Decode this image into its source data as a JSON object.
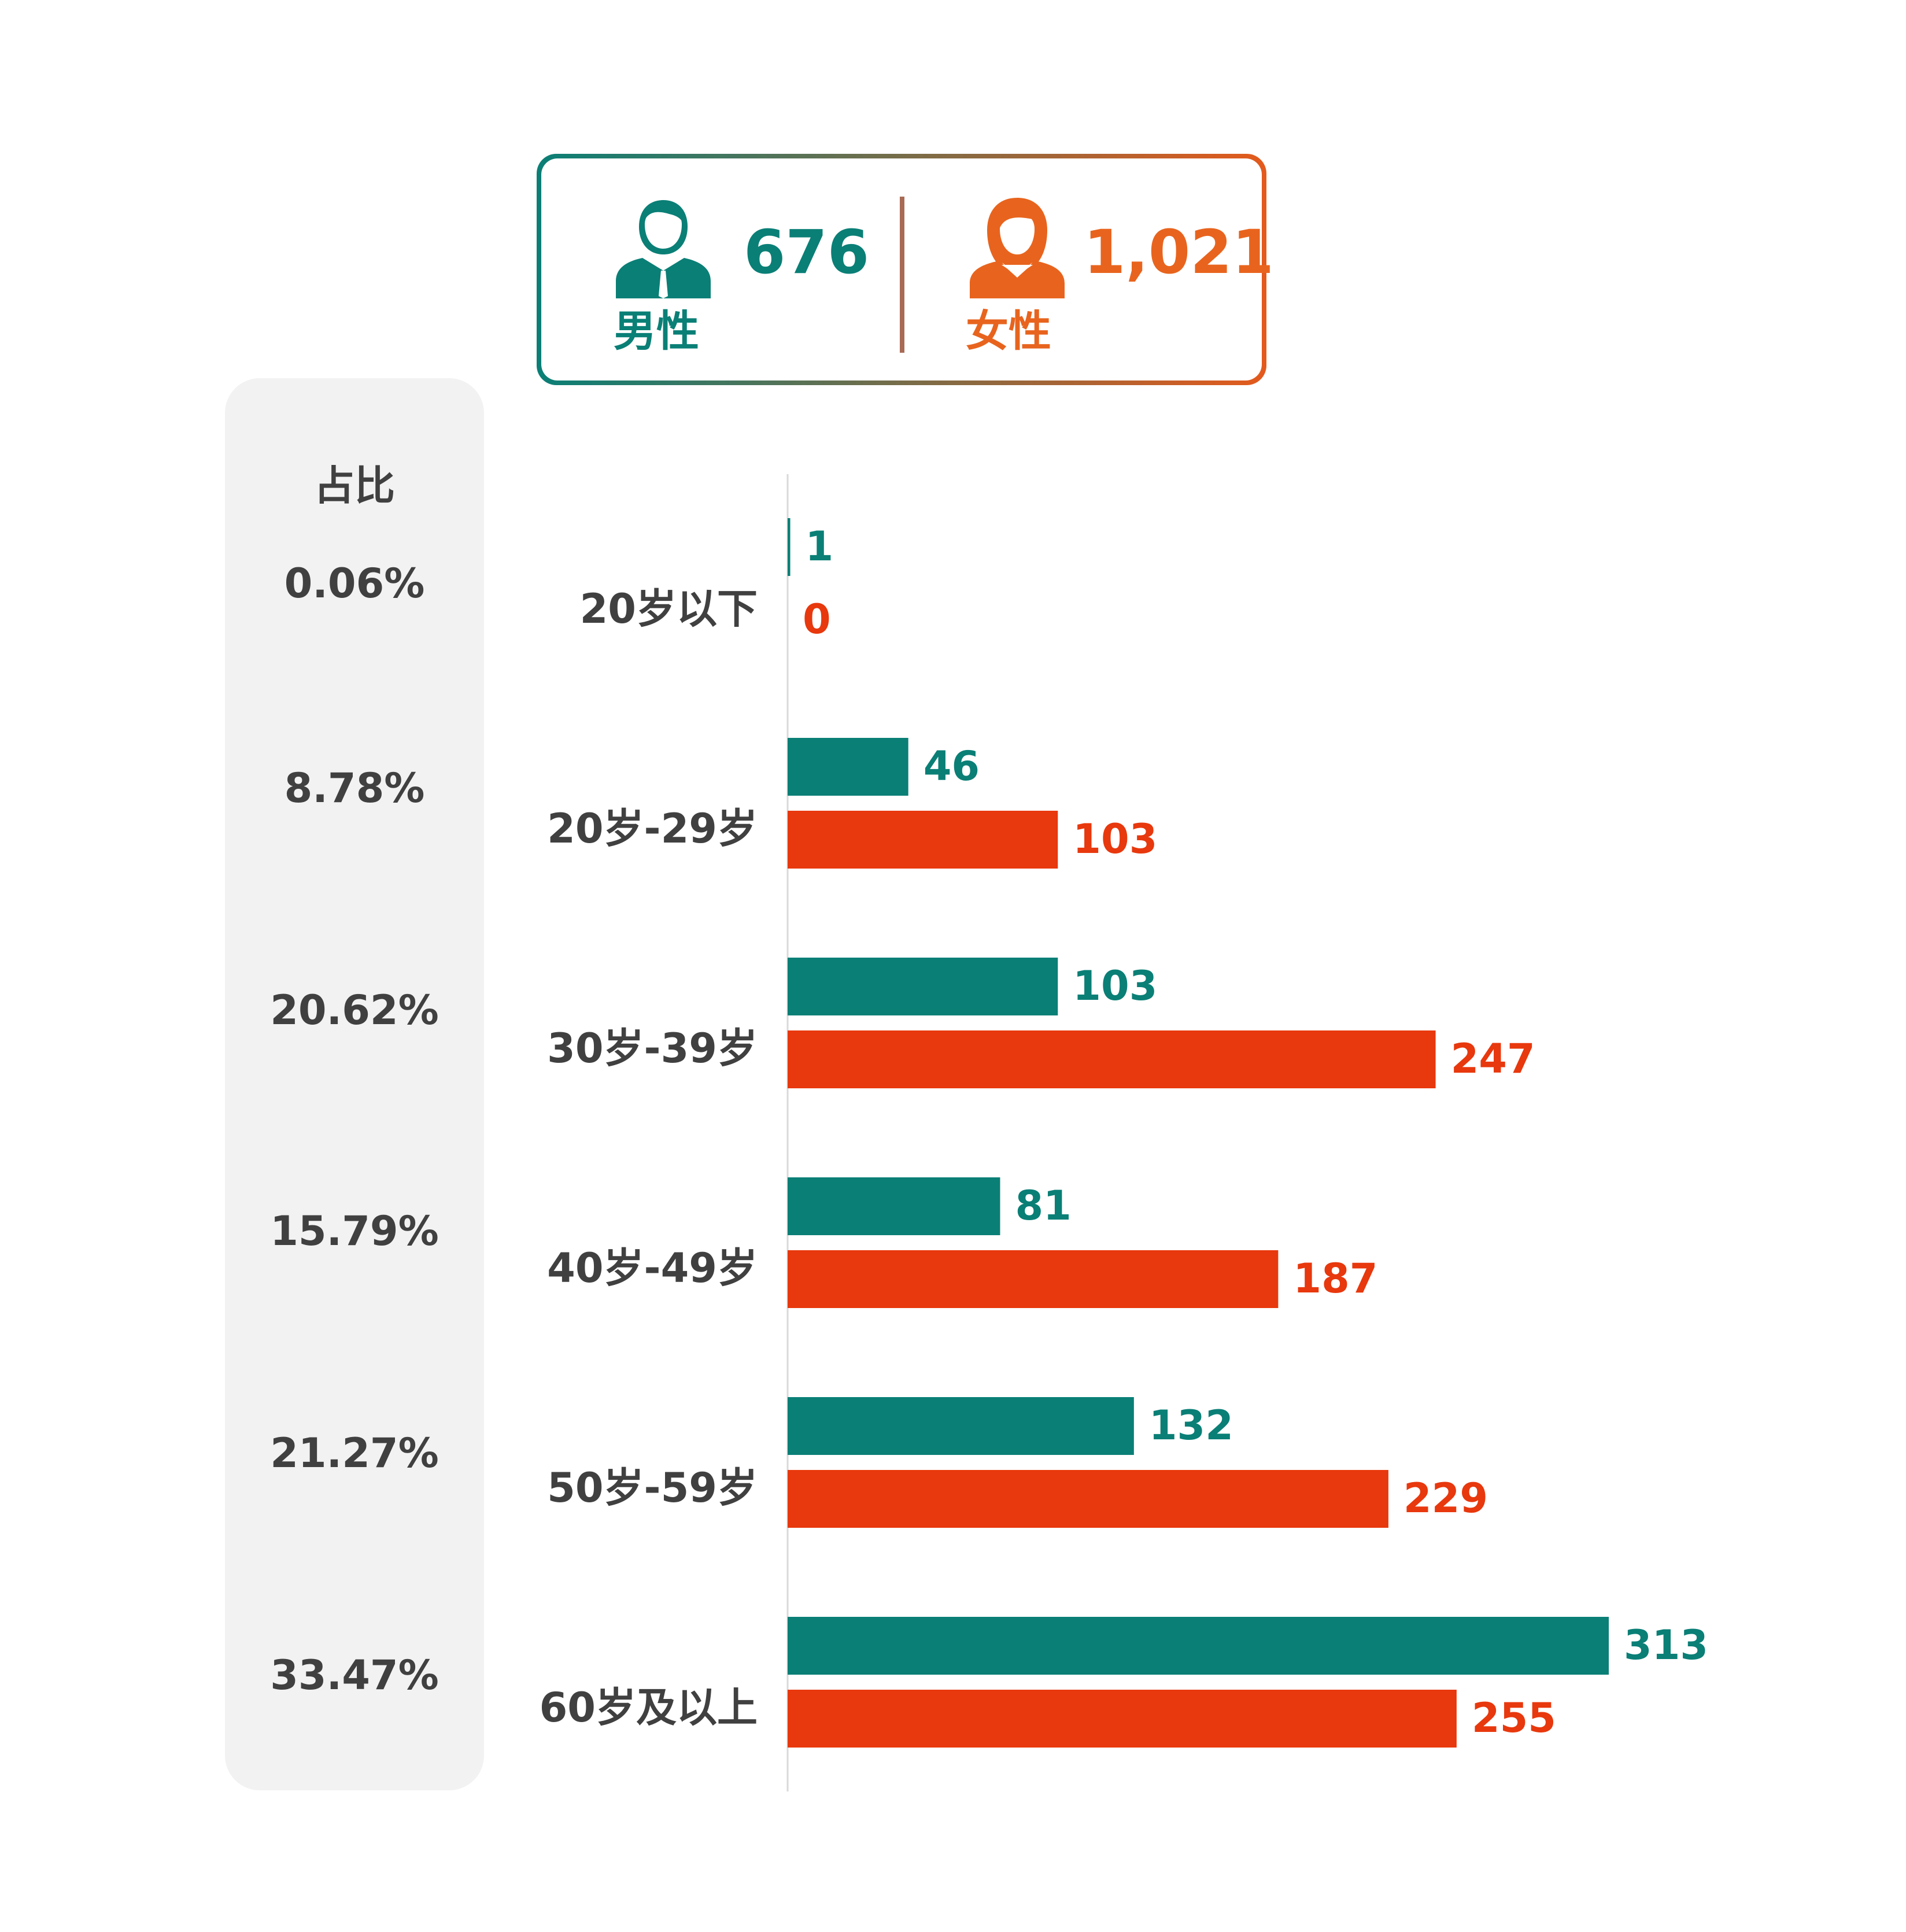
{
  "summary": {
    "male": {
      "label": "男性",
      "count": "676",
      "icon": "male-avatar-icon"
    },
    "female": {
      "label": "女性",
      "count": "1,021",
      "icon": "female-avatar-icon"
    }
  },
  "share": {
    "header": "占比",
    "values": [
      "0.06%",
      "8.78%",
      "20.62%",
      "15.79%",
      "21.27%",
      "33.47%"
    ]
  },
  "colors": {
    "male": "#0a7f76",
    "female": "#e8380d",
    "female_card": "#e8641e",
    "text": "#404040",
    "panel": "#f2f2f2"
  },
  "chart_data": {
    "type": "bar",
    "orientation": "horizontal",
    "categories": [
      "20岁以下",
      "20岁-29岁",
      "30岁-39岁",
      "40岁-49岁",
      "50岁-59岁",
      "60岁及以上"
    ],
    "series": [
      {
        "name": "男性",
        "values": [
          1,
          46,
          103,
          81,
          132,
          313
        ]
      },
      {
        "name": "女性",
        "values": [
          0,
          103,
          247,
          187,
          229,
          255
        ]
      }
    ],
    "xlim": [
      0,
      313
    ],
    "grid": false,
    "data_labels": true
  }
}
